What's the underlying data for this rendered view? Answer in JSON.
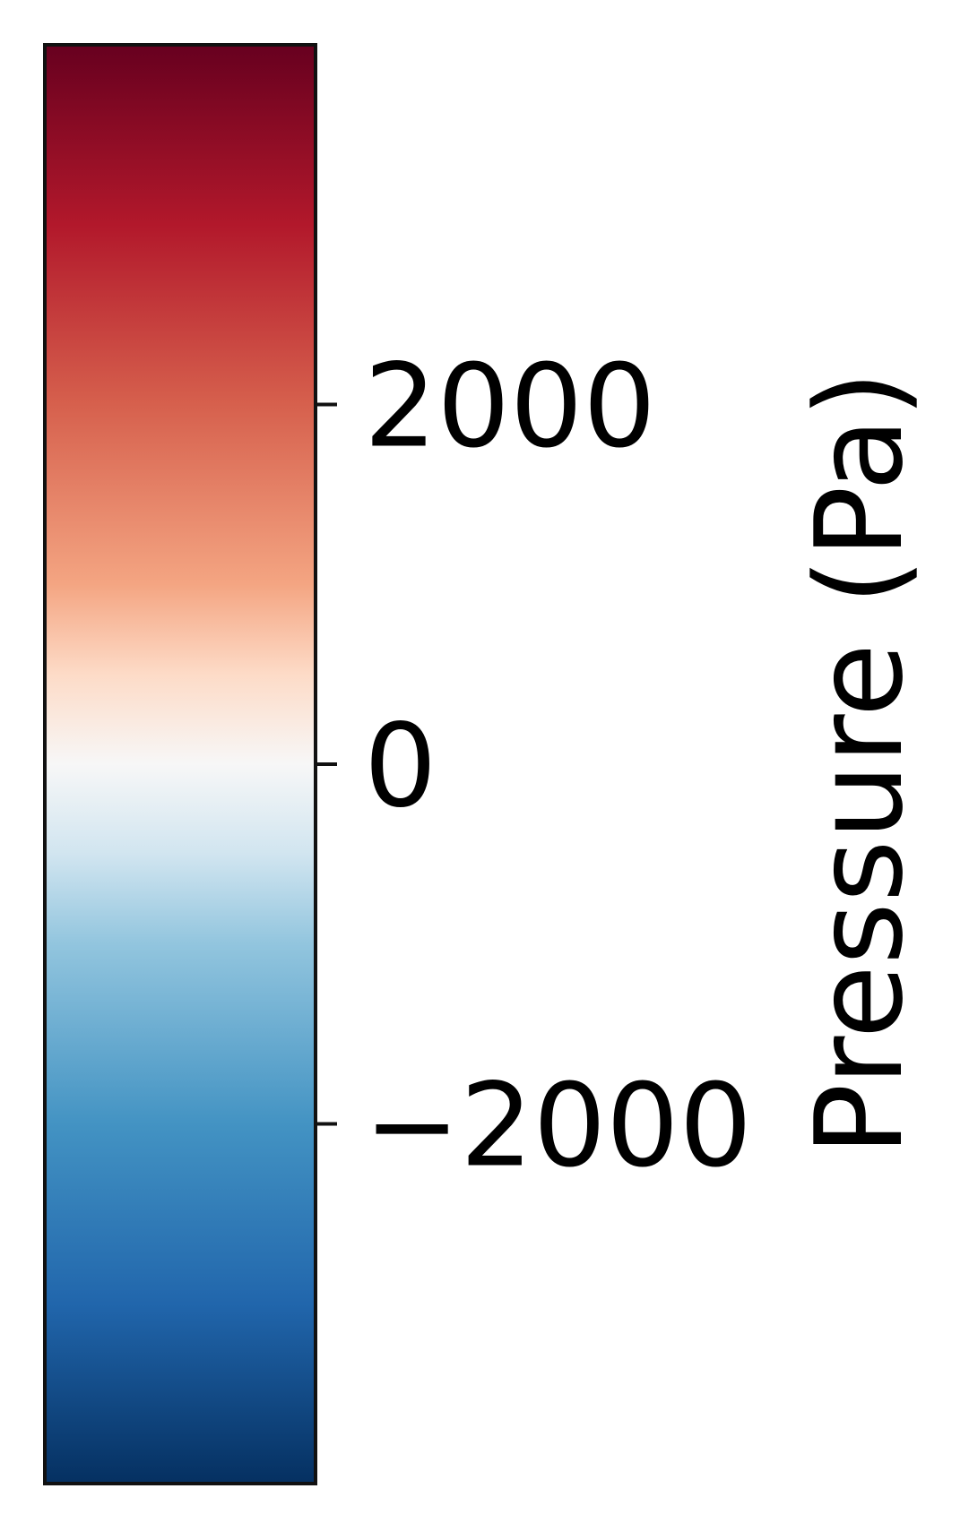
{
  "chart_data": {
    "type": "heatmap",
    "element": "colorbar",
    "orientation": "vertical",
    "colormap": "RdBu_r",
    "label": "Pressure (Pa)",
    "vmin": -4000,
    "vmax": 4000,
    "ticks": [
      {
        "value": 2000,
        "label": "2000"
      },
      {
        "value": 0,
        "label": "0"
      },
      {
        "value": -2000,
        "label": "−2000"
      }
    ],
    "color_stops": [
      {
        "value": 4000,
        "color": "#67001f"
      },
      {
        "value": 3000,
        "color": "#b2182b"
      },
      {
        "value": 2000,
        "color": "#d6604d"
      },
      {
        "value": 1000,
        "color": "#f4a582"
      },
      {
        "value": 500,
        "color": "#fddbc7"
      },
      {
        "value": 0,
        "color": "#f7f7f7"
      },
      {
        "value": -500,
        "color": "#d1e5f0"
      },
      {
        "value": -1000,
        "color": "#92c5de"
      },
      {
        "value": -2000,
        "color": "#4393c3"
      },
      {
        "value": -3000,
        "color": "#2166ac"
      },
      {
        "value": -4000,
        "color": "#053061"
      }
    ]
  }
}
